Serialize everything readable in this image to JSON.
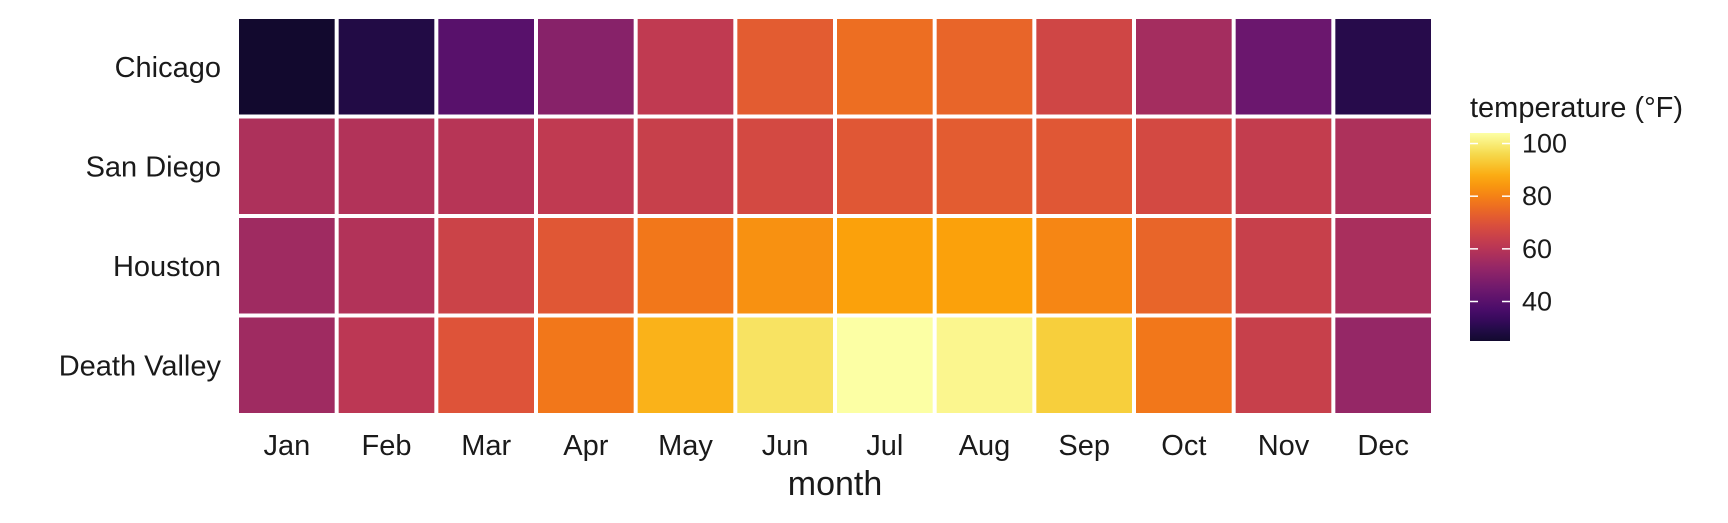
{
  "chart_data": {
    "type": "heatmap",
    "title": "",
    "xlabel": "month",
    "ylabel": "",
    "x_categories": [
      "Jan",
      "Feb",
      "Mar",
      "Apr",
      "May",
      "Jun",
      "Jul",
      "Aug",
      "Sep",
      "Oct",
      "Nov",
      "Dec"
    ],
    "y_categories": [
      "Chicago",
      "San Diego",
      "Houston",
      "Death Valley"
    ],
    "values": [
      [
        25,
        29,
        40,
        50,
        62,
        72,
        76,
        74,
        66,
        56,
        44,
        30
      ],
      [
        58,
        59,
        60,
        62,
        64,
        67,
        71,
        72,
        71,
        67,
        63,
        58
      ],
      [
        55,
        59,
        65,
        71,
        78,
        83,
        86,
        86,
        81,
        74,
        64,
        57
      ],
      [
        55,
        61,
        70,
        78,
        89,
        98,
        104,
        102,
        94,
        78,
        64,
        53
      ]
    ],
    "legend": {
      "title": "temperature (°F)",
      "ticks": [
        40,
        60,
        80,
        100
      ],
      "range": [
        25,
        104
      ],
      "placement": "right",
      "colormap": "inferno"
    },
    "grid": false
  }
}
